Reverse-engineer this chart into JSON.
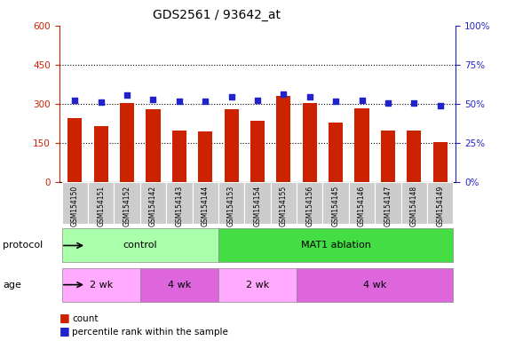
{
  "title": "GDS2561 / 93642_at",
  "samples": [
    "GSM154150",
    "GSM154151",
    "GSM154152",
    "GSM154142",
    "GSM154143",
    "GSM154144",
    "GSM154153",
    "GSM154154",
    "GSM154155",
    "GSM154156",
    "GSM154145",
    "GSM154146",
    "GSM154147",
    "GSM154148",
    "GSM154149"
  ],
  "counts": [
    245,
    215,
    305,
    280,
    200,
    195,
    280,
    235,
    330,
    305,
    230,
    285,
    200,
    200,
    155
  ],
  "percentiles": [
    52.5,
    51.0,
    55.5,
    53.0,
    51.5,
    51.5,
    54.5,
    52.5,
    56.5,
    54.5,
    51.5,
    52.5,
    50.5,
    50.5,
    49.0
  ],
  "bar_color": "#bb1100",
  "dot_color": "#0000bb",
  "ylim_left": [
    0,
    600
  ],
  "ylim_right": [
    0,
    100
  ],
  "yticks_left": [
    0,
    150,
    300,
    450,
    600
  ],
  "yticks_right": [
    0,
    25,
    50,
    75,
    100
  ],
  "protocol_groups": [
    {
      "label": "control",
      "start": 0,
      "end": 6,
      "color": "#aaffaa"
    },
    {
      "label": "MAT1 ablation",
      "start": 6,
      "end": 15,
      "color": "#44dd44"
    }
  ],
  "age_groups": [
    {
      "label": "2 wk",
      "start": 0,
      "end": 3,
      "color": "#ffaaff"
    },
    {
      "label": "4 wk",
      "start": 3,
      "end": 6,
      "color": "#dd66dd"
    },
    {
      "label": "2 wk",
      "start": 6,
      "end": 9,
      "color": "#ffaaff"
    },
    {
      "label": "4 wk",
      "start": 9,
      "end": 15,
      "color": "#dd66dd"
    }
  ],
  "bar_color_red": "#cc2200",
  "dot_color_blue": "#2222cc",
  "plot_bg": "#ffffff",
  "sample_row_bg": "#cccccc",
  "row_label_protocol": "protocol",
  "row_label_age": "age"
}
